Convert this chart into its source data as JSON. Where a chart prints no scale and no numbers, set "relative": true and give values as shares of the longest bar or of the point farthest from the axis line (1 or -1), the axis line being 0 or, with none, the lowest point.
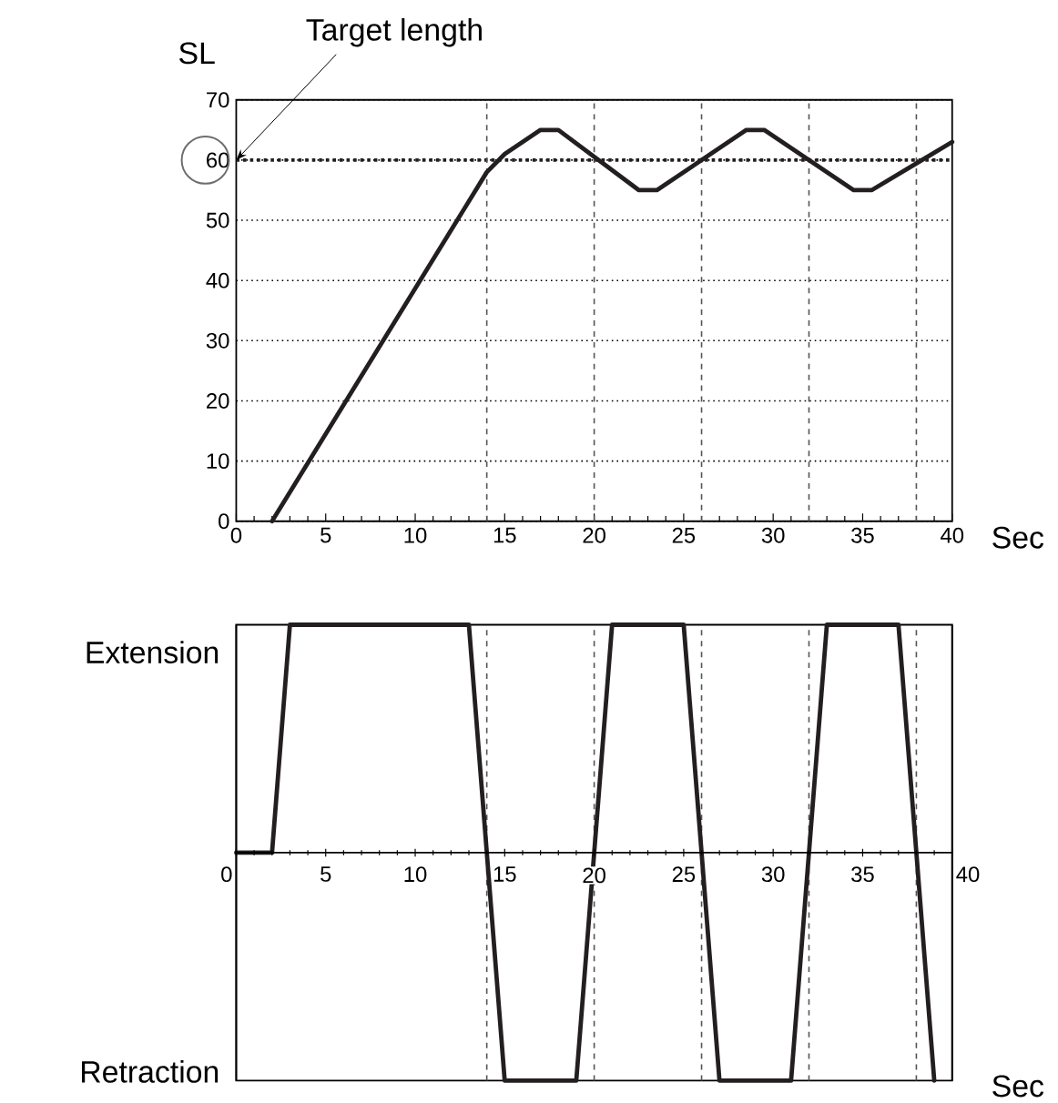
{
  "chart_data": [
    {
      "type": "line",
      "ylabel": "SL",
      "xlabel": "Sec",
      "color": "#231f20",
      "line_style": "solid",
      "x": [
        2,
        14,
        15,
        17,
        18,
        22.5,
        23.5,
        28.5,
        29.5,
        34.5,
        35.5,
        40
      ],
      "values": [
        0,
        58,
        61,
        65,
        65,
        55,
        55,
        65,
        65,
        55,
        55,
        63
      ],
      "xlim": [
        0,
        40
      ],
      "xticks": [
        0,
        5,
        10,
        15,
        20,
        25,
        30,
        35,
        40
      ],
      "ylim": [
        0,
        70
      ],
      "yticks": [
        0,
        10,
        20,
        30,
        40,
        50,
        60,
        70
      ],
      "grid": "y",
      "ref_lines": [
        {
          "axis": "y",
          "value": 60,
          "color": "#231f20",
          "line_style": "dotted"
        },
        {
          "axis": "x",
          "value": 14,
          "color": "#555555",
          "line_style": "dashed"
        },
        {
          "axis": "x",
          "value": 20,
          "color": "#555555",
          "line_style": "dashed"
        },
        {
          "axis": "x",
          "value": 26,
          "color": "#555555",
          "line_style": "dashed"
        },
        {
          "axis": "x",
          "value": 32,
          "color": "#555555",
          "line_style": "dashed"
        },
        {
          "axis": "x",
          "value": 38,
          "color": "#555555",
          "line_style": "dashed"
        }
      ],
      "annotations": [
        {
          "text": "Target length",
          "x": 0,
          "y": 60
        }
      ]
    },
    {
      "type": "line",
      "xlabel": "Sec",
      "color": "#231f20",
      "line_style": "solid",
      "x": [
        0,
        2,
        3,
        13,
        15,
        19,
        21,
        25,
        27,
        31,
        33,
        37,
        39
      ],
      "values": [
        0,
        0,
        1,
        1,
        -1,
        -1,
        1,
        1,
        -1,
        -1,
        1,
        1,
        -1
      ],
      "xlim": [
        0,
        40
      ],
      "xticks": [
        0,
        5,
        10,
        15,
        20,
        25,
        30,
        35,
        40
      ],
      "relative": true,
      "annotations": [
        "Extension",
        "Retraction"
      ],
      "ref_lines": [
        {
          "axis": "x",
          "value": 14,
          "color": "#555555",
          "line_style": "dashed"
        },
        {
          "axis": "x",
          "value": 20,
          "color": "#555555",
          "line_style": "dashed"
        },
        {
          "axis": "x",
          "value": 26,
          "color": "#555555",
          "line_style": "dashed"
        },
        {
          "axis": "x",
          "value": 32,
          "color": "#555555",
          "line_style": "dashed"
        },
        {
          "axis": "x",
          "value": 38,
          "color": "#555555",
          "line_style": "dashed"
        }
      ]
    }
  ]
}
